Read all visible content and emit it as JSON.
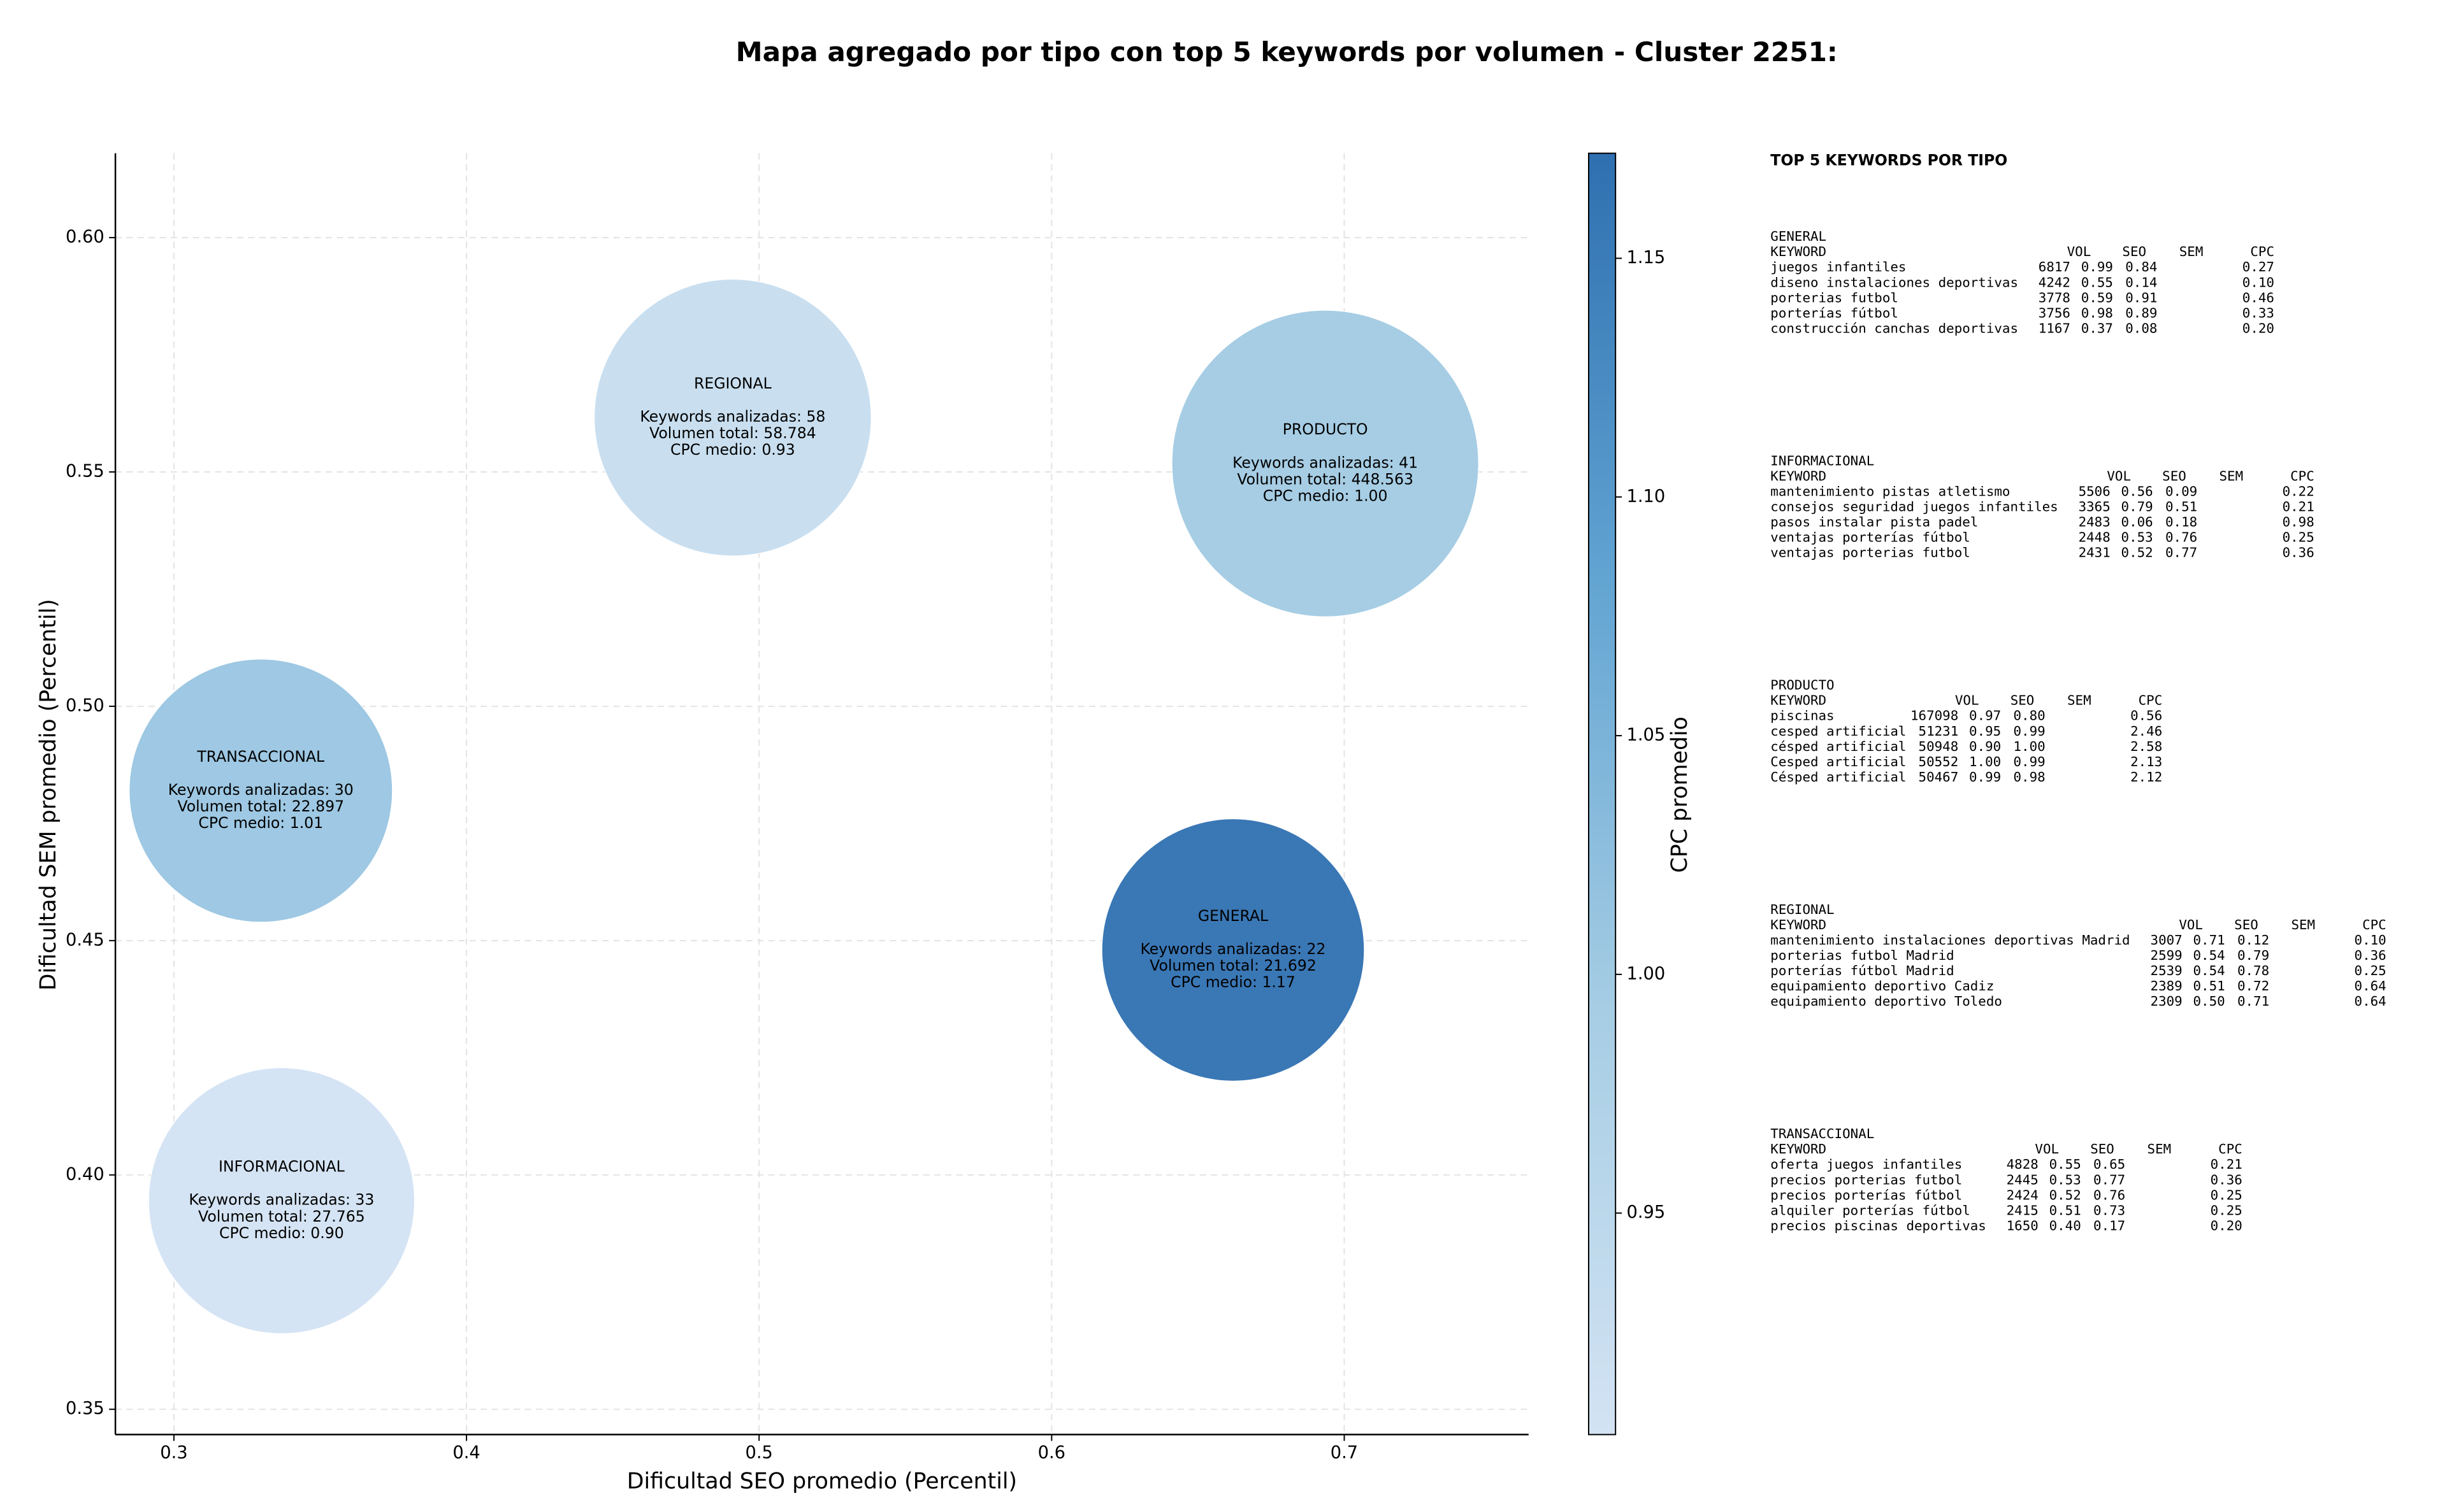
{
  "chart_data": {
    "type": "bubble",
    "title": "Mapa agregado por tipo con top 5 keywords por volumen - Cluster 2251:",
    "xlabel": "Dificultad SEO promedio (Percentil)",
    "ylabel": "Dificultad SEM promedio (Percentil)",
    "xlim": [
      0.28,
      0.763
    ],
    "ylim": [
      0.3446,
      0.618
    ],
    "xticks": [
      0.3,
      0.4,
      0.5,
      0.6,
      0.7
    ],
    "yticks": [
      0.35,
      {
        "value": 0.4,
        "label": "0.40"
      },
      0.45,
      {
        "value": 0.5,
        "label": "0.50"
      },
      0.55,
      {
        "value": 0.6,
        "label": "0.60"
      }
    ],
    "grid": true,
    "colormap": [
      "#d3e3f3",
      "#a6cde4",
      "#62a4d2",
      "#2e6fb0"
    ],
    "colorbar": {
      "label": "CPC promedio",
      "lim": [
        0.9036,
        1.172
      ],
      "ticks": [
        0.95,
        {
          "value": 1.0,
          "label": "1.00"
        },
        1.05,
        {
          "value": 1.1,
          "label": "1.10"
        },
        1.15
      ]
    },
    "points": [
      {
        "name": "REGIONAL",
        "x": 0.491,
        "y": 0.5616,
        "volume": 58784,
        "cpc": 0.93,
        "lines": [
          "Keywords analizadas: 58",
          "Volumen total: 58.784",
          "CPC medio: 0.93"
        ]
      },
      {
        "name": "PRODUCTO",
        "x": 0.6935,
        "y": 0.5518,
        "volume": 448563,
        "cpc": 1.0,
        "lines": [
          "Keywords analizadas: 41",
          "Volumen total: 448.563",
          "CPC medio: 1.00"
        ]
      },
      {
        "name": "TRANSACCIONAL",
        "x": 0.3297,
        "y": 0.482,
        "volume": 22897,
        "cpc": 1.01,
        "lines": [
          "Keywords analizadas: 30",
          "Volumen total: 22.897",
          "CPC medio: 1.01"
        ]
      },
      {
        "name": "GENERAL",
        "x": 0.662,
        "y": 0.448,
        "volume": 21692,
        "cpc": 1.17,
        "lines": [
          "Keywords analizadas: 22",
          "Volumen total: 21.692",
          "CPC medio: 1.17"
        ]
      },
      {
        "name": "INFORMACIONAL",
        "x": 0.3368,
        "y": 0.3945,
        "volume": 27765,
        "cpc": 0.9,
        "lines": [
          "Keywords analizadas: 33",
          "Volumen total: 27.765",
          "CPC medio: 0.90"
        ]
      }
    ]
  },
  "side_panel": {
    "title": "TOP 5 KEYWORDS POR TIPO",
    "header": [
      "KEYWORD",
      "VOL",
      "SEO",
      "SEM",
      "CPC"
    ],
    "sections": [
      {
        "name": "GENERAL",
        "rows": [
          [
            "juegos infantiles",
            "6817",
            "0.99",
            "0.84",
            "0.27"
          ],
          [
            "diseno instalaciones deportivas",
            "4242",
            "0.55",
            "0.14",
            "0.10"
          ],
          [
            "porterias futbol",
            "3778",
            "0.59",
            "0.91",
            "0.46"
          ],
          [
            "porterías fútbol",
            "3756",
            "0.98",
            "0.89",
            "0.33"
          ],
          [
            "construcción canchas deportivas",
            "1167",
            "0.37",
            "0.08",
            "0.20"
          ]
        ]
      },
      {
        "name": "INFORMACIONAL",
        "rows": [
          [
            "mantenimiento pistas atletismo",
            "5506",
            "0.56",
            "0.09",
            "0.22"
          ],
          [
            "consejos seguridad juegos infantiles",
            "3365",
            "0.79",
            "0.51",
            "0.21"
          ],
          [
            "pasos instalar pista padel",
            "2483",
            "0.06",
            "0.18",
            "0.98"
          ],
          [
            "ventajas porterías fútbol",
            "2448",
            "0.53",
            "0.76",
            "0.25"
          ],
          [
            "ventajas porterias futbol",
            "2431",
            "0.52",
            "0.77",
            "0.36"
          ]
        ]
      },
      {
        "name": "PRODUCTO",
        "rows": [
          [
            "piscinas",
            "167098",
            "0.97",
            "0.80",
            "0.56"
          ],
          [
            "cesped artificial",
            "51231",
            "0.95",
            "0.99",
            "2.46"
          ],
          [
            "césped artificial",
            "50948",
            "0.90",
            "1.00",
            "2.58"
          ],
          [
            "Cesped artificial",
            "50552",
            "1.00",
            "0.99",
            "2.13"
          ],
          [
            "Césped artificial",
            "50467",
            "0.99",
            "0.98",
            "2.12"
          ]
        ]
      },
      {
        "name": "REGIONAL",
        "rows": [
          [
            "mantenimiento instalaciones deportivas Madrid",
            "3007",
            "0.71",
            "0.12",
            "0.10"
          ],
          [
            "porterias futbol Madrid",
            "2599",
            "0.54",
            "0.79",
            "0.36"
          ],
          [
            "porterías fútbol Madrid",
            "2539",
            "0.54",
            "0.78",
            "0.25"
          ],
          [
            "equipamiento deportivo Cadiz",
            "2389",
            "0.51",
            "0.72",
            "0.64"
          ],
          [
            "equipamiento deportivo Toledo",
            "2309",
            "0.50",
            "0.71",
            "0.64"
          ]
        ]
      },
      {
        "name": "TRANSACCIONAL",
        "rows": [
          [
            "oferta juegos infantiles",
            "4828",
            "0.55",
            "0.65",
            "0.21"
          ],
          [
            "precios porterias futbol",
            "2445",
            "0.53",
            "0.77",
            "0.36"
          ],
          [
            "precios porterías fútbol",
            "2424",
            "0.52",
            "0.76",
            "0.25"
          ],
          [
            "alquiler porterías fútbol",
            "2415",
            "0.51",
            "0.73",
            "0.25"
          ],
          [
            "precios piscinas deportivas",
            "1650",
            "0.40",
            "0.17",
            "0.20"
          ]
        ]
      }
    ]
  }
}
